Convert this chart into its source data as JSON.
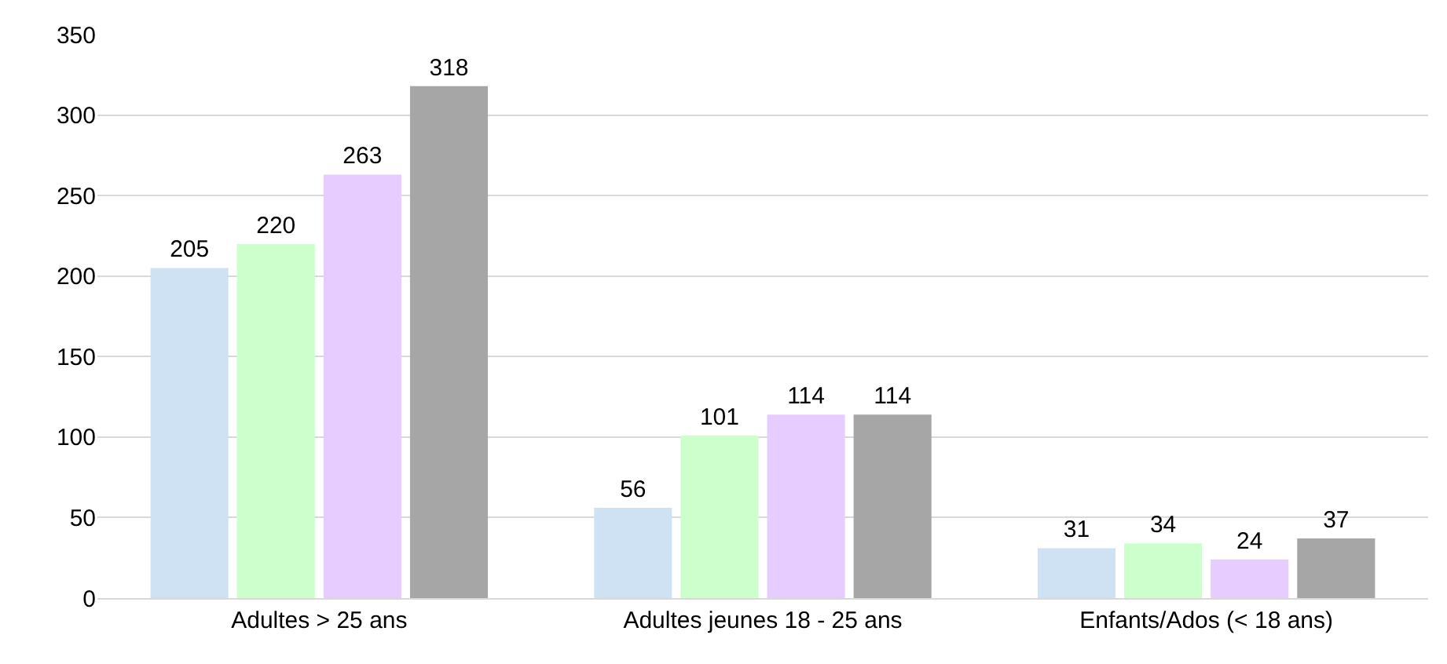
{
  "chart_data": {
    "type": "bar",
    "categories": [
      "Adultes > 25 ans",
      "Adultes jeunes 18 - 25 ans",
      "Enfants/Ados (< 18 ans)"
    ],
    "series": [
      {
        "color": "#cfe2f3",
        "values": [
          205,
          56,
          31
        ]
      },
      {
        "color": "#ccffcc",
        "values": [
          220,
          101,
          34
        ]
      },
      {
        "color": "#e6ccff",
        "values": [
          263,
          114,
          24
        ]
      },
      {
        "color": "#a6a6a6",
        "values": [
          318,
          114,
          37
        ]
      }
    ],
    "ylim": [
      0,
      350
    ],
    "yticks": [
      0,
      50,
      100,
      150,
      200,
      250,
      300,
      350
    ],
    "grid": "y",
    "data_labels": true
  }
}
